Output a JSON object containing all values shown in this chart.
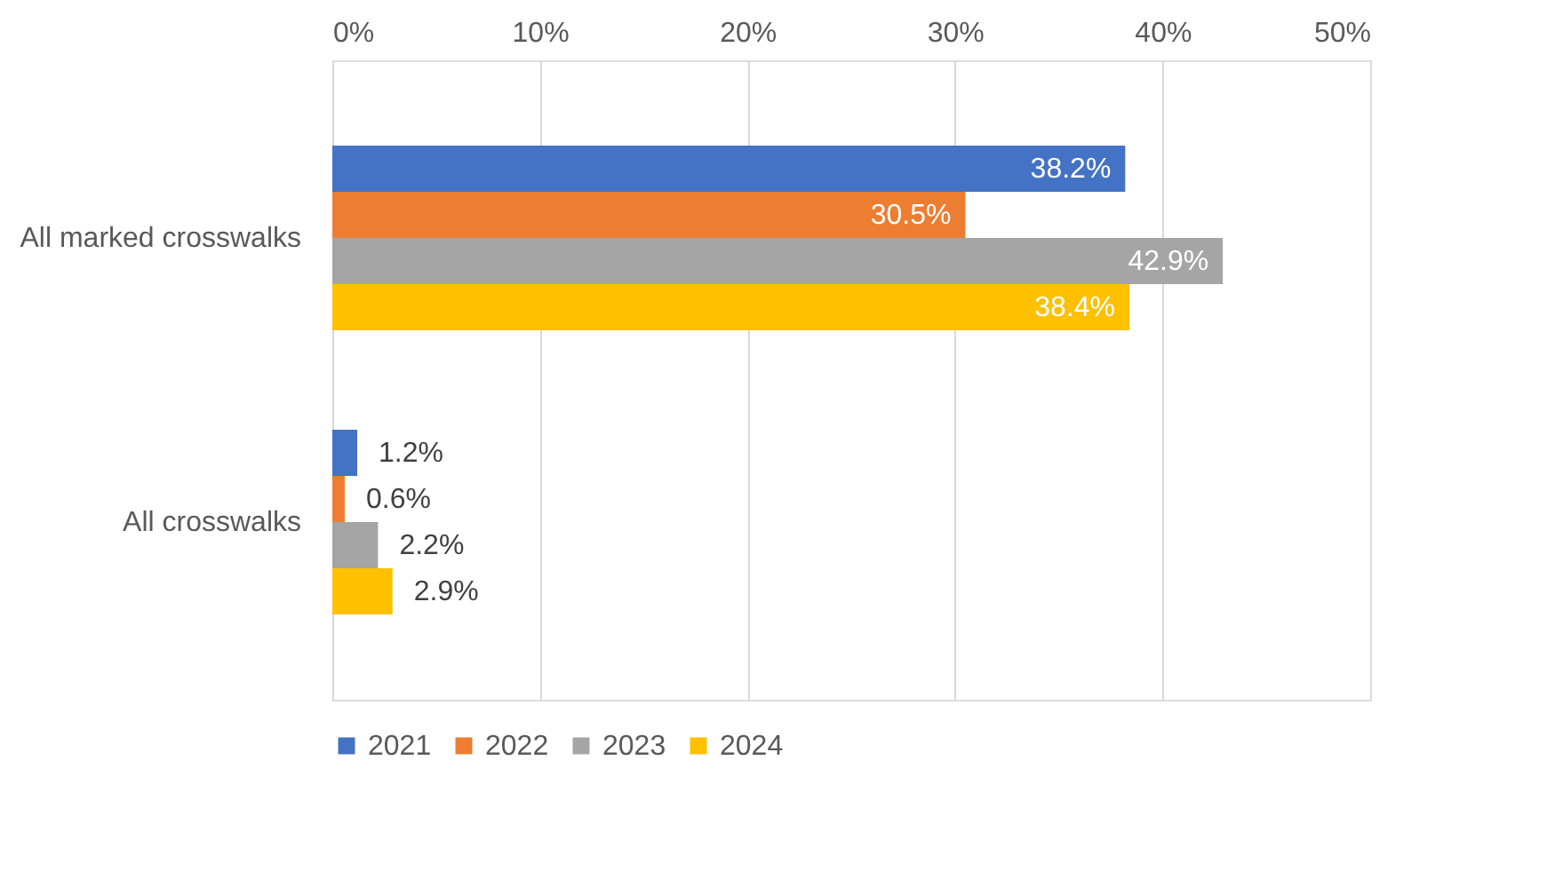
{
  "chart_data": {
    "type": "bar",
    "orientation": "horizontal",
    "categories": [
      "All marked crosswalks",
      "All crosswalks"
    ],
    "series": [
      {
        "name": "2021",
        "color": "#4472c4",
        "values": [
          38.2,
          1.2
        ],
        "value_labels": [
          "38.2%",
          "1.2%"
        ]
      },
      {
        "name": "2022",
        "color": "#ed7d31",
        "values": [
          30.5,
          0.6
        ],
        "value_labels": [
          "30.5%",
          "0.6%"
        ]
      },
      {
        "name": "2023",
        "color": "#a5a5a5",
        "values": [
          42.9,
          2.2
        ],
        "value_labels": [
          "42.9%",
          "2.2%"
        ]
      },
      {
        "name": "2024",
        "color": "#ffc000",
        "values": [
          38.4,
          2.9
        ],
        "value_labels": [
          "38.4%",
          "2.9%"
        ]
      }
    ],
    "xlim": [
      0,
      50
    ],
    "xticks": [
      {
        "value": 0,
        "label": "0%"
      },
      {
        "value": 10,
        "label": "10%"
      },
      {
        "value": 20,
        "label": "20%"
      },
      {
        "value": 30,
        "label": "30%"
      },
      {
        "value": 40,
        "label": "40%"
      },
      {
        "value": 50,
        "label": "50%"
      }
    ],
    "grid": "x",
    "legend": "bottom"
  }
}
